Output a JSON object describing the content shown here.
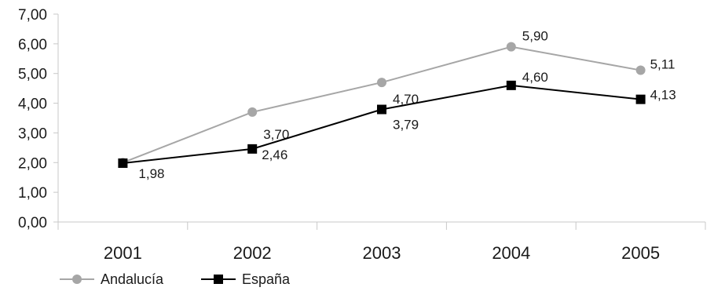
{
  "chart_data": {
    "type": "line",
    "categories": [
      "2001",
      "2002",
      "2003",
      "2004",
      "2005"
    ],
    "y_ticks": [
      "0,00",
      "1,00",
      "2,00",
      "3,00",
      "4,00",
      "5,00",
      "6,00",
      "7,00"
    ],
    "ylim": [
      0,
      7
    ],
    "grid": false,
    "legend_position": "bottom-left",
    "series": [
      {
        "name": "Andalucía",
        "values": [
          2.0,
          3.7,
          4.7,
          5.9,
          5.11
        ],
        "labels": [
          "",
          "3,70",
          "4,70",
          "5,90",
          "5,11"
        ],
        "color": "#a6a6a6",
        "marker": "circle"
      },
      {
        "name": "España",
        "values": [
          1.98,
          2.46,
          3.79,
          4.6,
          4.13
        ],
        "labels": [
          "1,98",
          "2,46",
          "3,79",
          "4,60",
          "4,13"
        ],
        "color": "#000000",
        "marker": "square"
      }
    ]
  }
}
